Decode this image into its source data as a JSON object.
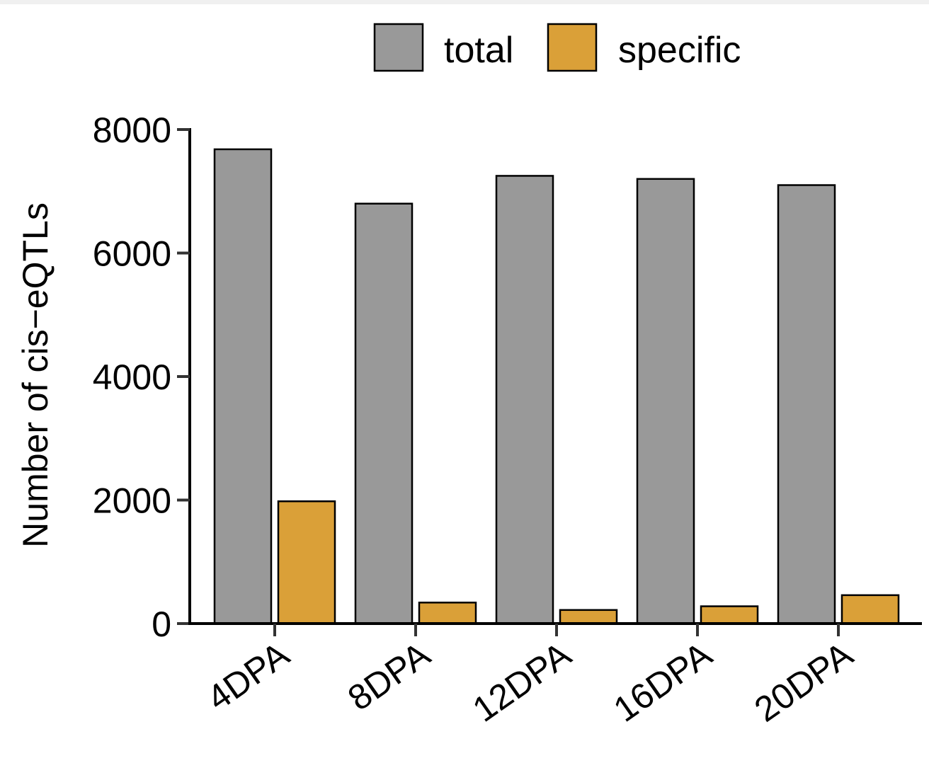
{
  "chart_data": {
    "type": "bar",
    "categories": [
      "4DPA",
      "8DPA",
      "12DPA",
      "16DPA",
      "20DPA"
    ],
    "series": [
      {
        "name": "total",
        "color": "#999999",
        "values": [
          7680,
          6800,
          7250,
          7200,
          7100
        ]
      },
      {
        "name": "specific",
        "color": "#DAA038",
        "values": [
          1980,
          340,
          220,
          280,
          460
        ]
      }
    ],
    "ylabel": "Number of cis−eQTLs",
    "xlabel": "",
    "ylim": [
      0,
      8000
    ],
    "yticks": [
      0,
      2000,
      4000,
      6000,
      8000
    ],
    "legend_position": "top",
    "grid": false
  }
}
